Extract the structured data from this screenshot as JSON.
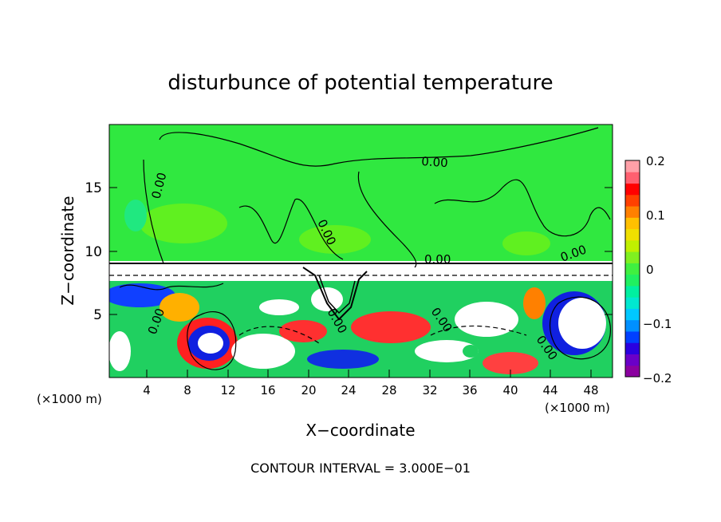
{
  "chart_data": {
    "type": "heatmap",
    "title": "disturbunce of potential temperature",
    "xlabel": "X−coordinate",
    "ylabel": "Z−coordinate",
    "x_unit_left": "(×1000 m)",
    "x_unit_right": "(×1000 m)",
    "xlim": [
      0,
      50
    ],
    "ylim": [
      0,
      20
    ],
    "x_ticks": [
      "4",
      "8",
      "12",
      "16",
      "20",
      "24",
      "28",
      "32",
      "36",
      "40",
      "44",
      "48"
    ],
    "y_ticks": [
      "5",
      "10",
      "15"
    ],
    "colorbar": {
      "range": [
        -0.2,
        0.2
      ],
      "tick_labels": [
        "0.2",
        "0.1",
        "0",
        "−0.1",
        "−0.2"
      ],
      "colors": [
        "#8b00a0",
        "#6a00c8",
        "#2a00e0",
        "#0040ff",
        "#0090ff",
        "#00c8ff",
        "#00e8d0",
        "#00f0a0",
        "#20f060",
        "#40f040",
        "#80f020",
        "#c0f000",
        "#f0e000",
        "#ffc000",
        "#ff8000",
        "#ff4000",
        "#ff0000",
        "#ff6070",
        "#ffa0a8"
      ]
    },
    "contour_labels": [
      "0.00",
      "0.00",
      "0.00",
      "0.00",
      "0.00",
      "0.00",
      "0.00",
      "0.00",
      "0.00"
    ],
    "grid": false,
    "footer": "CONTOUR INTERVAL = 3.000E−01"
  }
}
